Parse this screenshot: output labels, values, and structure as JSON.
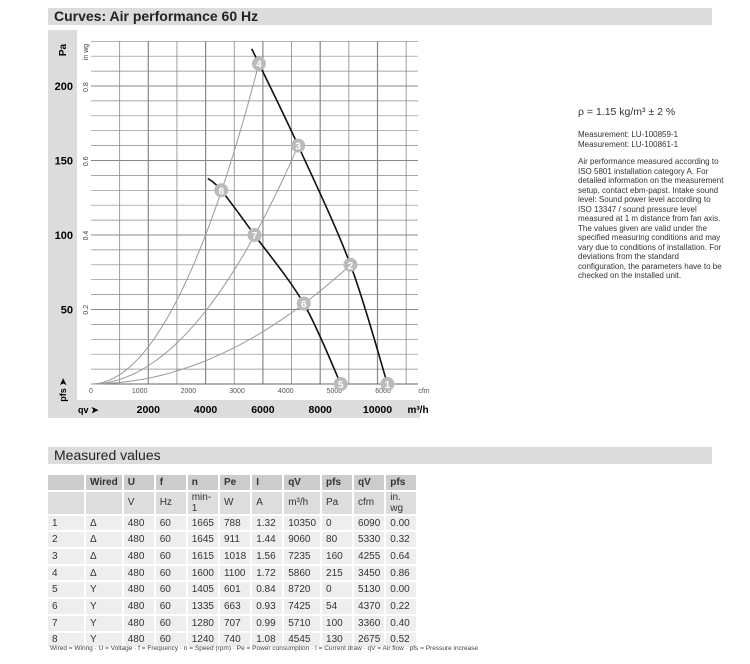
{
  "header": {
    "title": "Curves: Air performance 60 Hz"
  },
  "side": {
    "density": "ρ = 1.15 kg/m³ ± 2 %",
    "measurements": [
      "Measurement: LU-100859-1",
      "Measurement: LU-100861-1"
    ],
    "note": "Air performance measured according to ISO 5801 installation category A. For detailed information on the measurement setup, contact ebm-papst. Intake sound level: Sound power level according to ISO 13347 / sound pressure level measured at 1 m distance from fan axis. The values given are valid under the specified measuring conditions and may vary due to conditions of installation. For deviations from the standard configuration, the parameters have to be checked on the installed unit."
  },
  "chart_data": {
    "type": "line",
    "y_label": "Pa",
    "y2_label": "in wg",
    "y_axis_name": "pfs ➤",
    "x_axis_name": "qv ➤",
    "y_ticks": [
      50,
      100,
      150,
      200
    ],
    "y2_ticks": [
      "0.2",
      "0.4",
      "0.6",
      "0.8"
    ],
    "x_cfm_ticks": [
      0,
      1000,
      2000,
      3000,
      4000,
      5000,
      6000
    ],
    "x_cfm_unit": "cfm",
    "x_m3h_ticks": [
      2000,
      4000,
      6000,
      8000,
      10000
    ],
    "x_m3h_unit": "m³/h",
    "xlim_cfm": [
      0,
      6800
    ],
    "ylim_pa": [
      0,
      230
    ],
    "grid": true,
    "operating_curves": [
      {
        "wiring": "Δ",
        "points": [
          [
            3300,
            225
          ],
          [
            3450,
            215
          ],
          [
            4255,
            160
          ],
          [
            5330,
            80
          ],
          [
            6090,
            0
          ]
        ]
      },
      {
        "wiring": "Y",
        "points": [
          [
            2400,
            138
          ],
          [
            2675,
            130
          ],
          [
            3360,
            100
          ],
          [
            4370,
            54
          ],
          [
            5130,
            0
          ]
        ]
      }
    ],
    "system_curves": [
      {
        "through": [
          4,
          8
        ]
      },
      {
        "through": [
          3,
          7
        ]
      },
      {
        "through": [
          2,
          6
        ]
      }
    ],
    "markers": [
      {
        "id": "1",
        "cfm": 6090,
        "pa": 0
      },
      {
        "id": "2",
        "cfm": 5330,
        "pa": 80
      },
      {
        "id": "3",
        "cfm": 4255,
        "pa": 160
      },
      {
        "id": "4",
        "cfm": 3450,
        "pa": 215
      },
      {
        "id": "5",
        "cfm": 5130,
        "pa": 0
      },
      {
        "id": "6",
        "cfm": 4370,
        "pa": 54
      },
      {
        "id": "7",
        "cfm": 3360,
        "pa": 100
      },
      {
        "id": "8",
        "cfm": 2675,
        "pa": 130
      }
    ]
  },
  "measured": {
    "title": "Measured values",
    "headers": [
      "",
      "Wired",
      "U",
      "f",
      "n",
      "Pe",
      "I",
      "qV",
      "pfs",
      "qV",
      "pfs"
    ],
    "units": [
      "",
      "",
      "V",
      "Hz",
      "min-1",
      "W",
      "A",
      "m³/h",
      "Pa",
      "cfm",
      "in. wg"
    ],
    "rows": [
      [
        "1",
        "Δ",
        "480",
        "60",
        "1665",
        "788",
        "1.32",
        "10350",
        "0",
        "6090",
        "0.00"
      ],
      [
        "2",
        "Δ",
        "480",
        "60",
        "1645",
        "911",
        "1.44",
        "9060",
        "80",
        "5330",
        "0.32"
      ],
      [
        "3",
        "Δ",
        "480",
        "60",
        "1615",
        "1018",
        "1.56",
        "7235",
        "160",
        "4255",
        "0.64"
      ],
      [
        "4",
        "Δ",
        "480",
        "60",
        "1600",
        "1100",
        "1.72",
        "5860",
        "215",
        "3450",
        "0.86"
      ],
      [
        "5",
        "Y",
        "480",
        "60",
        "1405",
        "601",
        "0.84",
        "8720",
        "0",
        "5130",
        "0.00"
      ],
      [
        "6",
        "Y",
        "480",
        "60",
        "1335",
        "663",
        "0.93",
        "7425",
        "54",
        "4370",
        "0.22"
      ],
      [
        "7",
        "Y",
        "480",
        "60",
        "1280",
        "707",
        "0.99",
        "5710",
        "100",
        "3360",
        "0.40"
      ],
      [
        "8",
        "Y",
        "480",
        "60",
        "1240",
        "740",
        "1.08",
        "4545",
        "130",
        "2675",
        "0.52"
      ]
    ],
    "footnote": "Wired = Wiring · U = Voltage · f = Frequency · n = Speed (rpm) · Pe = Power consumption · I = Current draw · qV = Air flow · pfs = Pressure increase"
  }
}
